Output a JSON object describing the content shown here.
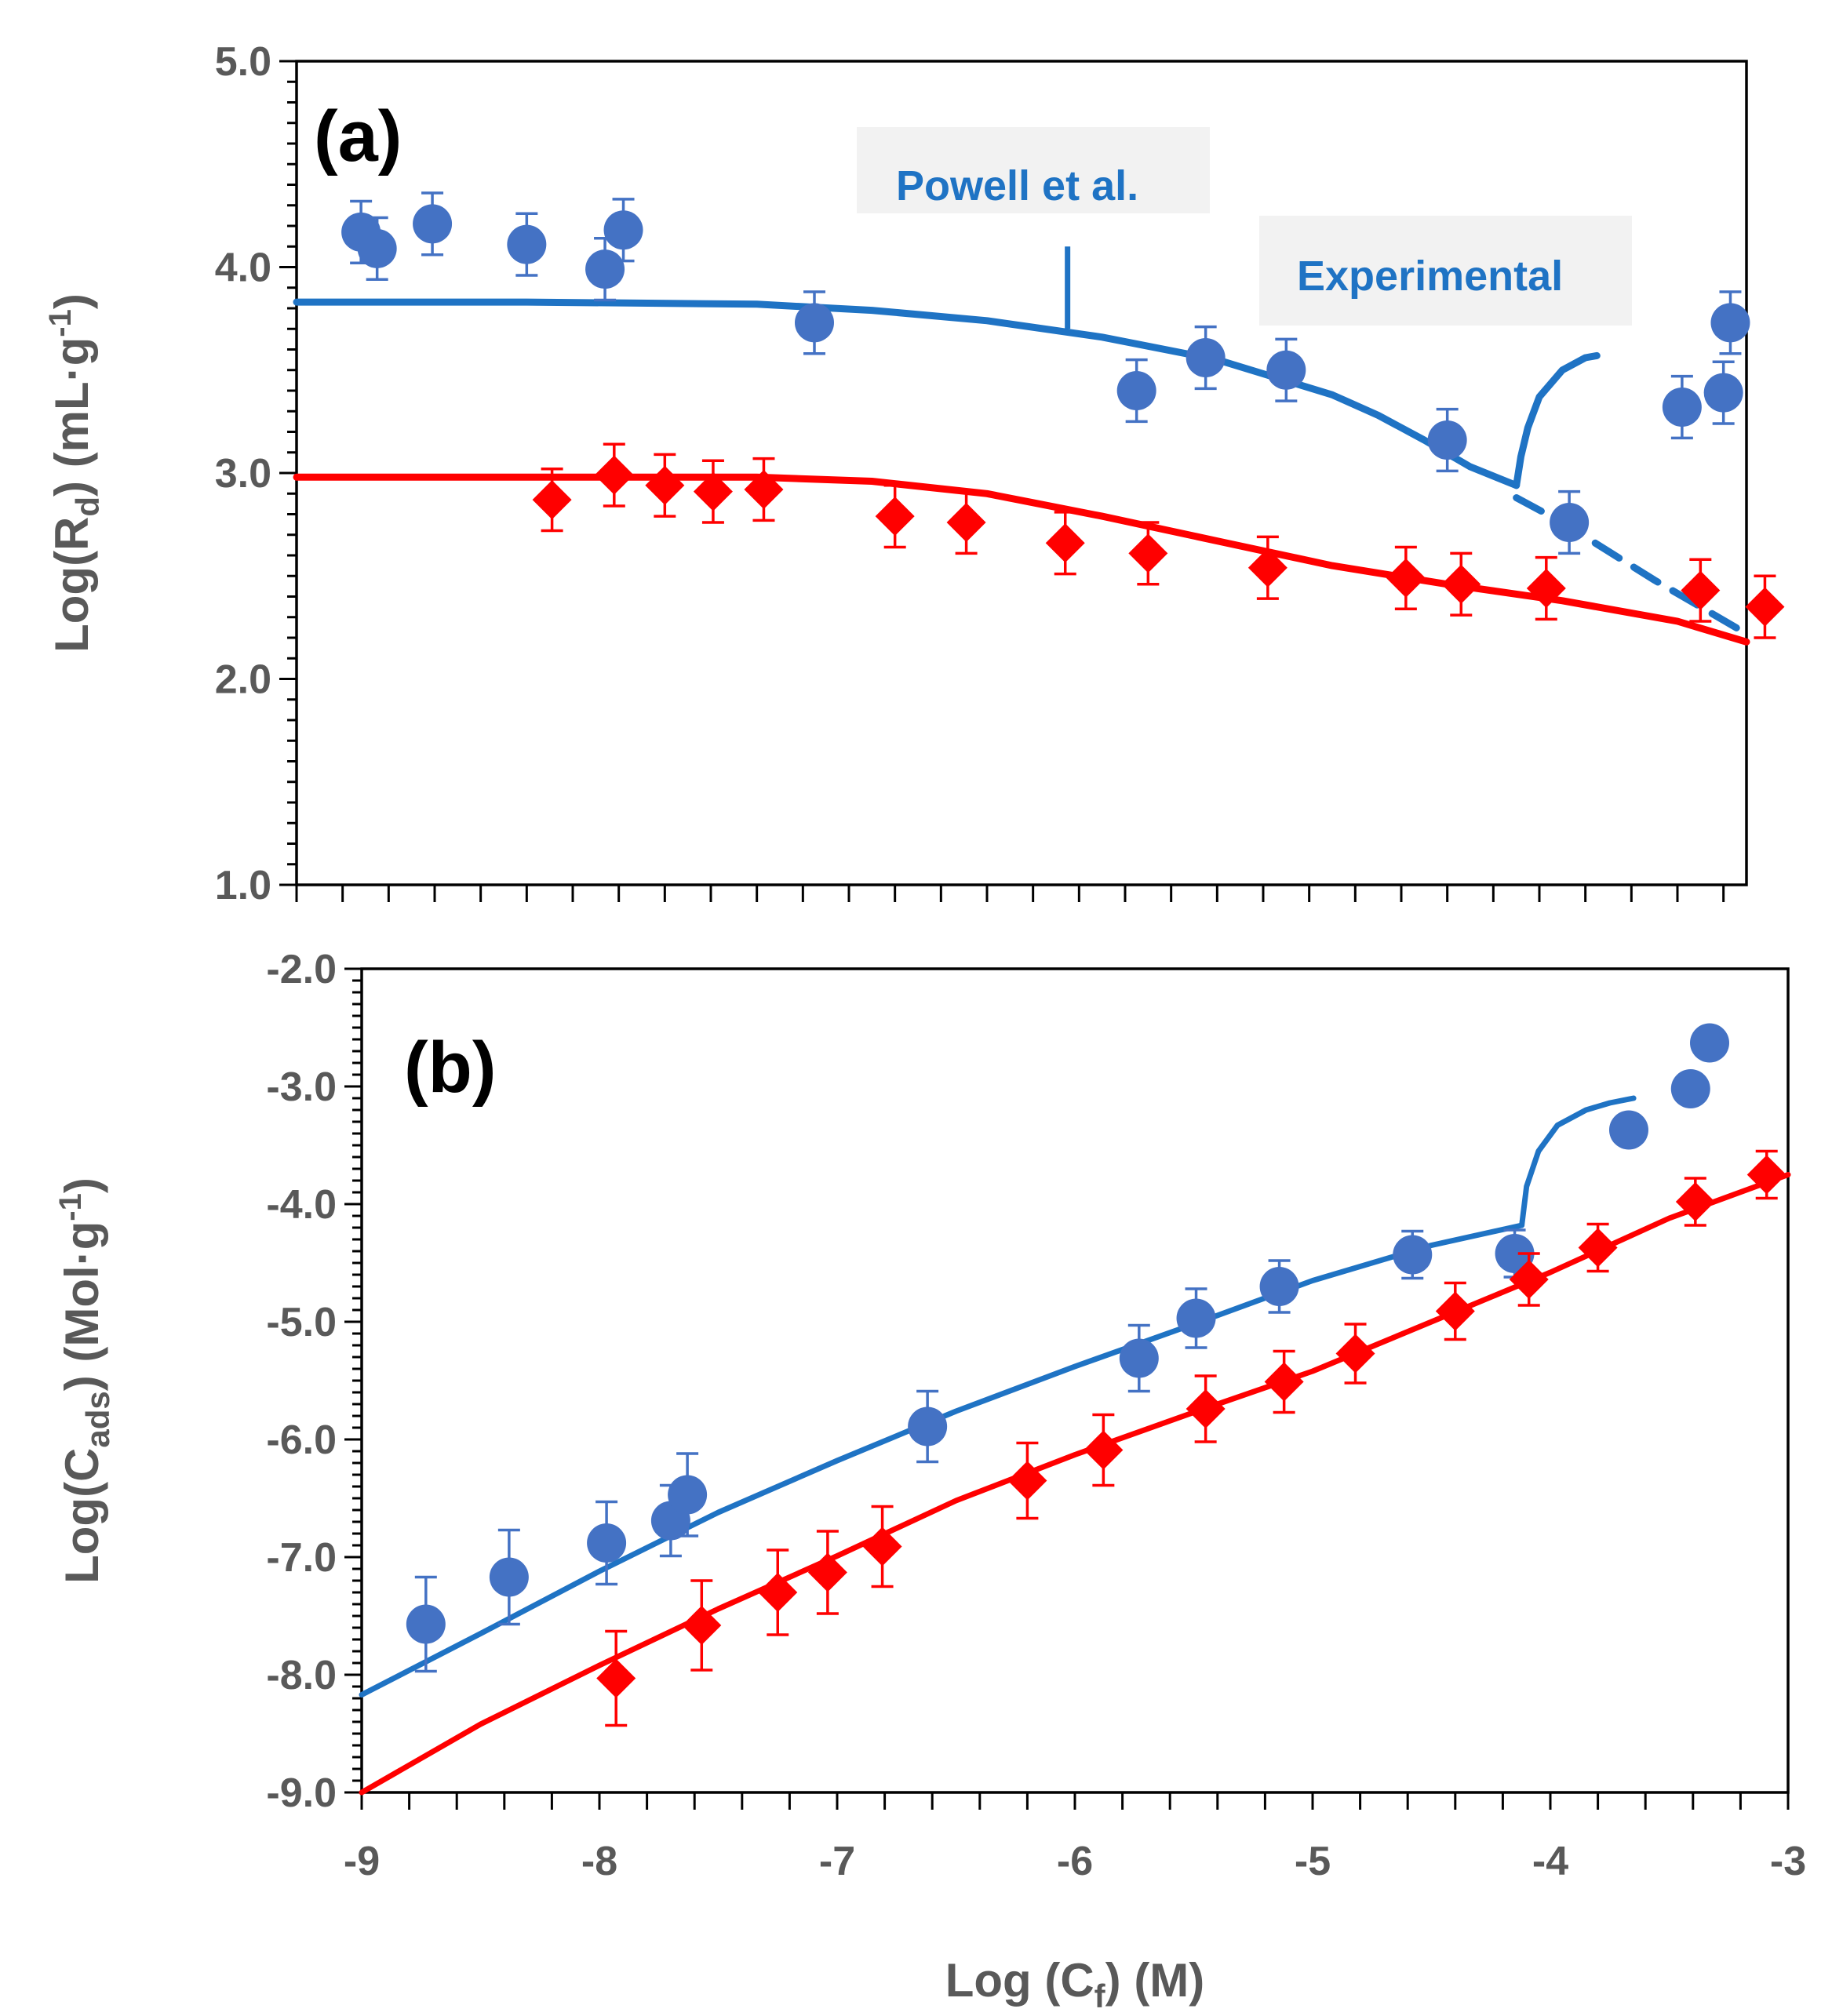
{
  "colors": {
    "blue_marker": "#4472c4",
    "blue_line": "#1f73c4",
    "red": "#ff0000",
    "axis": "#000000",
    "text": "#595959",
    "annotation_bg": "#f2f2f2"
  },
  "chart_data": [
    {
      "type": "scatter",
      "panel_label": "(a)",
      "ylabel_prefix": "Log(R",
      "ylabel_sub": "d",
      "ylabel_units_prefix": ")   (mL·g",
      "ylabel_units_sup": "-1",
      "ylabel_units_suffix": ")",
      "xlim": [
        -9.5,
        -3.2
      ],
      "ylim": [
        1.0,
        5.0
      ],
      "yticks": [
        "5.0",
        "4.0",
        "3.0",
        "2.0",
        "1.0"
      ],
      "ytick_values": [
        5.0,
        4.0,
        3.0,
        2.0,
        1.0
      ],
      "annotations": [
        {
          "text": "Powell et al.",
          "x": -6.15,
          "y": 4.4,
          "pointer_top": 4.1,
          "pointer_bottom": 3.7
        },
        {
          "text": "Experimental",
          "x": -4.7,
          "y": 4.0
        }
      ],
      "series": [
        {
          "name": "blue_points",
          "marker": "circle",
          "points": [
            {
              "x": -9.22,
              "y": 4.17,
              "err": 0.15
            },
            {
              "x": -9.15,
              "y": 4.09,
              "err": 0.15
            },
            {
              "x": -8.91,
              "y": 4.21,
              "err": 0.15
            },
            {
              "x": -8.5,
              "y": 4.11,
              "err": 0.15
            },
            {
              "x": -8.16,
              "y": 3.99,
              "err": 0.15
            },
            {
              "x": -8.08,
              "y": 4.18,
              "err": 0.15
            },
            {
              "x": -7.25,
              "y": 3.73,
              "err": 0.15
            },
            {
              "x": -5.85,
              "y": 3.4,
              "err": 0.15
            },
            {
              "x": -5.55,
              "y": 3.56,
              "err": 0.15
            },
            {
              "x": -5.2,
              "y": 3.5,
              "err": 0.15
            },
            {
              "x": -4.5,
              "y": 3.16,
              "err": 0.15
            },
            {
              "x": -3.97,
              "y": 2.76,
              "err": 0.15
            },
            {
              "x": -3.48,
              "y": 3.32,
              "err": 0.15
            },
            {
              "x": -3.3,
              "y": 3.39,
              "err": 0.15
            },
            {
              "x": -3.27,
              "y": 3.73,
              "err": 0.15
            }
          ]
        },
        {
          "name": "red_points",
          "marker": "diamond",
          "points": [
            {
              "x": -8.39,
              "y": 2.87,
              "err": 0.15
            },
            {
              "x": -8.12,
              "y": 2.99,
              "err": 0.15
            },
            {
              "x": -7.9,
              "y": 2.94,
              "err": 0.15
            },
            {
              "x": -7.69,
              "y": 2.91,
              "err": 0.15
            },
            {
              "x": -7.47,
              "y": 2.92,
              "err": 0.15
            },
            {
              "x": -6.9,
              "y": 2.79,
              "err": 0.15
            },
            {
              "x": -6.59,
              "y": 2.76,
              "err": 0.15
            },
            {
              "x": -6.16,
              "y": 2.66,
              "err": 0.15
            },
            {
              "x": -5.8,
              "y": 2.61,
              "err": 0.15
            },
            {
              "x": -5.28,
              "y": 2.54,
              "err": 0.15
            },
            {
              "x": -4.68,
              "y": 2.49,
              "err": 0.15
            },
            {
              "x": -4.44,
              "y": 2.46,
              "err": 0.15
            },
            {
              "x": -4.07,
              "y": 2.44,
              "err": 0.15
            },
            {
              "x": -3.4,
              "y": 2.43,
              "err": 0.15
            },
            {
              "x": -3.12,
              "y": 2.35,
              "err": 0.15
            }
          ]
        },
        {
          "name": "blue_fit",
          "style": "solid",
          "x": [
            -9.5,
            -8.5,
            -7.5,
            -7.0,
            -6.5,
            -6.0,
            -5.5,
            -5.0,
            -4.8,
            -4.6,
            -4.4,
            -4.2
          ],
          "y": [
            3.83,
            3.83,
            3.82,
            3.79,
            3.74,
            3.66,
            3.55,
            3.38,
            3.28,
            3.16,
            3.03,
            2.94
          ]
        },
        {
          "name": "blue_fit_jump",
          "style": "solid",
          "x": [
            -4.2,
            -4.18,
            -4.15,
            -4.1,
            -4.0,
            -3.9,
            -3.85
          ],
          "y": [
            2.94,
            3.08,
            3.22,
            3.37,
            3.5,
            3.56,
            3.57
          ]
        },
        {
          "name": "blue_fit_dashed",
          "style": "dashed",
          "x": [
            -4.2,
            -4.0,
            -3.8,
            -3.6,
            -3.4,
            -3.2
          ],
          "y": [
            2.88,
            2.76,
            2.62,
            2.48,
            2.35,
            2.22
          ]
        },
        {
          "name": "red_fit",
          "style": "solid",
          "x": [
            -9.5,
            -8.5,
            -7.5,
            -7.0,
            -6.5,
            -6.0,
            -5.5,
            -5.0,
            -4.5,
            -4.0,
            -3.5,
            -3.2
          ],
          "y": [
            2.98,
            2.98,
            2.98,
            2.96,
            2.9,
            2.79,
            2.67,
            2.55,
            2.46,
            2.38,
            2.28,
            2.18
          ]
        }
      ]
    },
    {
      "type": "scatter",
      "panel_label": "(b)",
      "ylabel_prefix": "Log(C",
      "ylabel_sub": "ads",
      "ylabel_units_prefix": ")   (Mol·g",
      "ylabel_units_sup": "-1",
      "ylabel_units_suffix": ")",
      "xlabel_prefix": "Log (C",
      "xlabel_sub": "f",
      "xlabel_suffix": ")   (M)",
      "xlim": [
        -9.0,
        -3.0
      ],
      "ylim": [
        -9.0,
        -2.0
      ],
      "xticks": [
        "-9",
        "-8",
        "-7",
        "-6",
        "-5",
        "-4",
        "-3"
      ],
      "xtick_values": [
        -9,
        -8,
        -7,
        -6,
        -5,
        -4,
        -3
      ],
      "yticks": [
        "-2.0",
        "-3.0",
        "-4.0",
        "-5.0",
        "-6.0",
        "-7.0",
        "-8.0",
        "-9.0"
      ],
      "ytick_values": [
        -2.0,
        -3.0,
        -4.0,
        -5.0,
        -6.0,
        -7.0,
        -8.0,
        -9.0
      ],
      "series": [
        {
          "name": "blue_points",
          "marker": "circle",
          "points": [
            {
              "x": -8.73,
              "y": -7.57,
              "err": 0.4
            },
            {
              "x": -8.38,
              "y": -7.17,
              "err": 0.4
            },
            {
              "x": -7.97,
              "y": -6.88,
              "err": 0.35
            },
            {
              "x": -7.7,
              "y": -6.69,
              "err": 0.3
            },
            {
              "x": -7.63,
              "y": -6.47,
              "err": 0.35
            },
            {
              "x": -6.62,
              "y": -5.89,
              "err": 0.3
            },
            {
              "x": -5.73,
              "y": -5.31,
              "err": 0.28
            },
            {
              "x": -5.49,
              "y": -4.97,
              "err": 0.25
            },
            {
              "x": -5.14,
              "y": -4.7,
              "err": 0.22
            },
            {
              "x": -4.58,
              "y": -4.43,
              "err": 0.2
            },
            {
              "x": -4.15,
              "y": -4.42,
              "err": 0.2
            },
            {
              "x": -3.67,
              "y": -3.37,
              "err": 0.0
            },
            {
              "x": -3.41,
              "y": -3.02,
              "err": 0.0
            },
            {
              "x": -3.33,
              "y": -2.63,
              "err": 0.0
            }
          ]
        },
        {
          "name": "red_points",
          "marker": "diamond",
          "points": [
            {
              "x": -7.93,
              "y": -8.03,
              "err": 0.4
            },
            {
              "x": -7.57,
              "y": -7.58,
              "err": 0.38
            },
            {
              "x": -7.25,
              "y": -7.3,
              "err": 0.36
            },
            {
              "x": -7.04,
              "y": -7.13,
              "err": 0.35
            },
            {
              "x": -6.81,
              "y": -6.91,
              "err": 0.34
            },
            {
              "x": -6.2,
              "y": -6.35,
              "err": 0.32
            },
            {
              "x": -5.88,
              "y": -6.09,
              "err": 0.3
            },
            {
              "x": -5.45,
              "y": -5.74,
              "err": 0.28
            },
            {
              "x": -5.12,
              "y": -5.51,
              "err": 0.26
            },
            {
              "x": -4.82,
              "y": -5.27,
              "err": 0.25
            },
            {
              "x": -4.4,
              "y": -4.91,
              "err": 0.24
            },
            {
              "x": -4.09,
              "y": -4.64,
              "err": 0.22
            },
            {
              "x": -3.8,
              "y": -4.37,
              "err": 0.2
            },
            {
              "x": -3.39,
              "y": -3.98,
              "err": 0.2
            },
            {
              "x": -3.09,
              "y": -3.75,
              "err": 0.2
            }
          ]
        },
        {
          "name": "blue_fit",
          "style": "solid",
          "x": [
            -9.0,
            -8.5,
            -8.0,
            -7.5,
            -7.0,
            -6.5,
            -6.0,
            -5.5,
            -5.0,
            -4.5,
            -4.12
          ],
          "y": [
            -8.17,
            -7.65,
            -7.12,
            -6.62,
            -6.18,
            -5.76,
            -5.38,
            -5.02,
            -4.65,
            -4.35,
            -4.18
          ]
        },
        {
          "name": "blue_fit_jump",
          "style": "solid",
          "x": [
            -4.12,
            -4.1,
            -4.05,
            -3.97,
            -3.85,
            -3.75,
            -3.65
          ],
          "y": [
            -4.18,
            -3.85,
            -3.55,
            -3.33,
            -3.2,
            -3.14,
            -3.1
          ]
        },
        {
          "name": "red_fit",
          "style": "solid",
          "x": [
            -9.0,
            -8.5,
            -8.0,
            -7.5,
            -7.0,
            -6.5,
            -6.0,
            -5.5,
            -5.0,
            -4.5,
            -4.0,
            -3.5,
            -3.0
          ],
          "y": [
            -9.0,
            -8.42,
            -7.92,
            -7.44,
            -6.99,
            -6.52,
            -6.13,
            -5.77,
            -5.42,
            -5.0,
            -4.58,
            -4.12,
            -3.75
          ]
        }
      ]
    }
  ]
}
